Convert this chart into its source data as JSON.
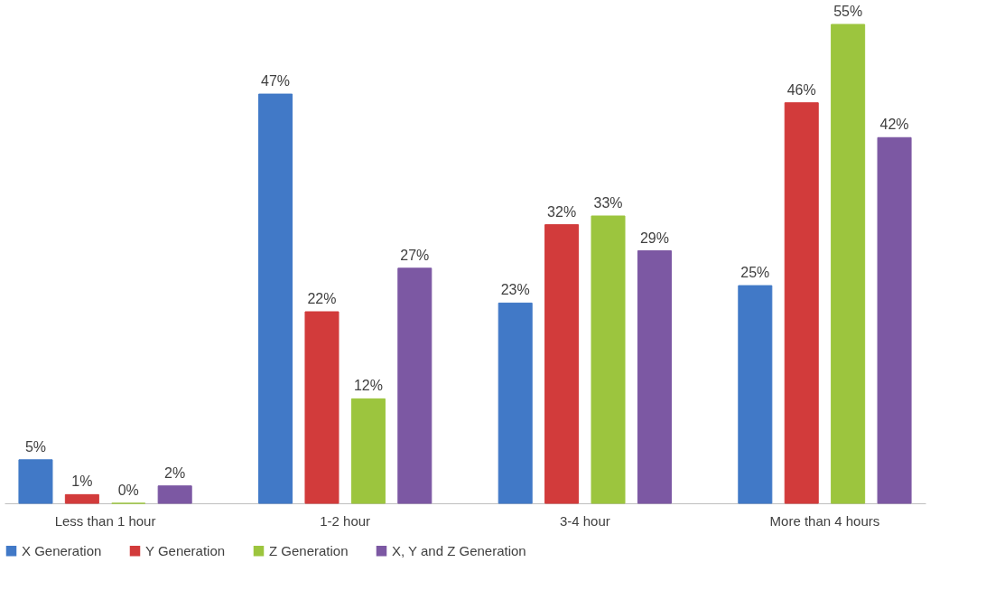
{
  "chart_data": {
    "type": "bar",
    "categories": [
      "Less than 1 hour",
      "1-2 hour",
      "3-4 hour",
      "More than 4 hours"
    ],
    "series": [
      {
        "name": "X Generation",
        "color": "#4179c7",
        "values": [
          5,
          47,
          23,
          25
        ],
        "value_labels": [
          "5%",
          "47%",
          "23%",
          "25%"
        ]
      },
      {
        "name": "Y Generation",
        "color": "#d23b3b",
        "values": [
          1,
          22,
          32,
          46
        ],
        "value_labels": [
          "1%",
          "22%",
          "32%",
          "46%"
        ]
      },
      {
        "name": "Z Generation",
        "color": "#9cc53e",
        "values": [
          0,
          12,
          33,
          55
        ],
        "value_labels": [
          "0%",
          "12%",
          "33%",
          "55%"
        ]
      },
      {
        "name": "X, Y and Z Generation",
        "color": "#7c58a3",
        "values": [
          2,
          27,
          29,
          42
        ],
        "value_labels": [
          "2%",
          "27%",
          "29%",
          "42%"
        ]
      }
    ],
    "legend": "bottom",
    "grid": false
  }
}
